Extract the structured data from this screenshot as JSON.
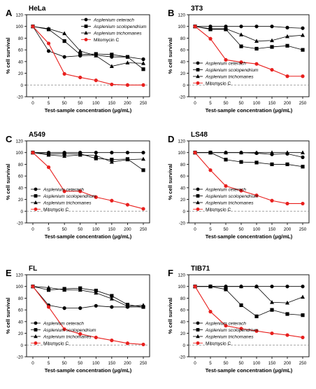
{
  "x_categories": [
    "0",
    "5",
    "50",
    "50",
    "100",
    "150",
    "200",
    "250"
  ],
  "y_ticks": [
    -20,
    0,
    20,
    40,
    60,
    80,
    100,
    120
  ],
  "xlabel": "Test-sample concentration (μg/mL)",
  "ylabel": "% cell survival",
  "colors": {
    "fern": "#000000",
    "mitomycin": "#e8201e",
    "refline": "#888888"
  },
  "chart_data": [
    {
      "type": "line",
      "letter": "A",
      "panel_title": "HeLa",
      "ylim": [
        -20,
        120
      ],
      "reference_line": 0,
      "legend_placement": "top-right",
      "categories": [
        "0",
        "5",
        "50",
        "50",
        "100",
        "150",
        "200",
        "250"
      ],
      "series": [
        {
          "name": "Asplenium ceterach",
          "marker": "circle",
          "values": [
            100,
            58,
            48,
            50,
            51,
            48,
            48,
            44
          ]
        },
        {
          "name": "Asplenium scolopendrium",
          "marker": "square",
          "values": [
            100,
            95,
            75,
            52,
            53,
            52,
            48,
            27
          ]
        },
        {
          "name": "Asplenium trichomanes",
          "marker": "triangle",
          "values": [
            100,
            96,
            88,
            58,
            50,
            32,
            38,
            37
          ]
        },
        {
          "name": "Mitomycin C",
          "marker": "circle",
          "values": [
            100,
            71,
            19,
            13,
            8,
            1,
            0,
            0
          ]
        }
      ]
    },
    {
      "type": "line",
      "letter": "B",
      "panel_title": "3T3",
      "ylim": [
        -20,
        120
      ],
      "reference_line": 0,
      "legend_placement": "bottom-left",
      "categories": [
        "0",
        "5",
        "50",
        "50",
        "100",
        "150",
        "200",
        "250"
      ],
      "series": [
        {
          "name": "Asplenium ceterach",
          "marker": "circle",
          "values": [
            100,
            100,
            100,
            100,
            100,
            100,
            98,
            97
          ]
        },
        {
          "name": "Asplenium scolopendrium",
          "marker": "square",
          "values": [
            100,
            95,
            95,
            66,
            62,
            65,
            67,
            60
          ]
        },
        {
          "name": "Asplenium trichomanes",
          "marker": "triangle",
          "values": [
            100,
            96,
            96,
            86,
            75,
            76,
            83,
            85
          ]
        },
        {
          "name": "Mitomycin C",
          "marker": "circle",
          "values": [
            100,
            79,
            43,
            39,
            36,
            26,
            15,
            15
          ]
        }
      ]
    },
    {
      "type": "line",
      "letter": "C",
      "panel_title": "A549",
      "ylim": [
        -20,
        120
      ],
      "reference_line": 0,
      "legend_placement": "bottom-left",
      "categories": [
        "0",
        "5",
        "50",
        "50",
        "100",
        "150",
        "200",
        "250"
      ],
      "series": [
        {
          "name": "Asplenium ceterach",
          "marker": "circle",
          "values": [
            100,
            100,
            100,
            100,
            100,
            100,
            100,
            100
          ]
        },
        {
          "name": "Asplenium scolopendrium",
          "marker": "square",
          "values": [
            100,
            98,
            98,
            98,
            90,
            88,
            89,
            70
          ]
        },
        {
          "name": "Asplenium trichomanes",
          "marker": "triangle",
          "values": [
            100,
            96,
            94,
            96,
            95,
            84,
            88,
            89
          ]
        },
        {
          "name": "Mitomycin C",
          "marker": "circle",
          "values": [
            100,
            75,
            34,
            34,
            24,
            18,
            11,
            4
          ]
        }
      ]
    },
    {
      "type": "line",
      "letter": "D",
      "panel_title": "LS48",
      "ylim": [
        -20,
        120
      ],
      "reference_line": 0,
      "legend_placement": "bottom-left",
      "categories": [
        "0",
        "5",
        "50",
        "50",
        "100",
        "150",
        "200",
        "250"
      ],
      "series": [
        {
          "name": "Asplenium ceterach",
          "marker": "circle",
          "values": [
            100,
            100,
            100,
            100,
            99,
            97,
            98,
            92
          ]
        },
        {
          "name": "Asplenium scolopendrium",
          "marker": "square",
          "values": [
            100,
            100,
            88,
            84,
            83,
            80,
            80,
            76
          ]
        },
        {
          "name": "Asplenium trichomanes",
          "marker": "triangle",
          "values": [
            100,
            100,
            100,
            100,
            100,
            100,
            100,
            100
          ]
        },
        {
          "name": "Mitomycin C",
          "marker": "circle",
          "values": [
            100,
            70,
            43,
            35,
            27,
            18,
            13,
            13
          ]
        }
      ]
    },
    {
      "type": "line",
      "letter": "E",
      "panel_title": "FL",
      "ylim": [
        -20,
        120
      ],
      "reference_line": 0,
      "legend_placement": "bottom-left",
      "categories": [
        "0",
        "5",
        "50",
        "50",
        "100",
        "150",
        "200",
        "250"
      ],
      "series": [
        {
          "name": "Asplenium ceterach",
          "marker": "circle",
          "values": [
            100,
            68,
            63,
            63,
            67,
            65,
            65,
            65
          ]
        },
        {
          "name": "Asplenium scolopendrium",
          "marker": "square",
          "values": [
            100,
            94,
            96,
            97,
            93,
            84,
            69,
            65
          ]
        },
        {
          "name": "Asplenium trichomanes",
          "marker": "triangle",
          "values": [
            100,
            98,
            94,
            94,
            89,
            79,
            66,
            68
          ]
        },
        {
          "name": "Mitomycin C",
          "marker": "circle",
          "values": [
            100,
            65,
            27,
            19,
            13,
            8,
            3,
            1
          ]
        }
      ]
    },
    {
      "type": "line",
      "letter": "F",
      "panel_title": "TIB71",
      "ylim": [
        -20,
        120
      ],
      "reference_line": 0,
      "legend_placement": "bottom-left",
      "categories": [
        "0",
        "5",
        "50",
        "50",
        "100",
        "150",
        "200",
        "250"
      ],
      "series": [
        {
          "name": "Asplenium ceterach",
          "marker": "circle",
          "values": [
            100,
            100,
            100,
            100,
            100,
            100,
            100,
            100
          ]
        },
        {
          "name": "Asplenium scolopendrium",
          "marker": "square",
          "values": [
            100,
            100,
            95,
            68,
            49,
            60,
            53,
            51
          ]
        },
        {
          "name": "Asplenium trichomanes",
          "marker": "triangle",
          "values": [
            100,
            100,
            100,
            100,
            100,
            73,
            72,
            82
          ]
        },
        {
          "name": "Mitomycin C",
          "marker": "circle",
          "values": [
            100,
            57,
            33,
            28,
            24,
            20,
            17,
            13
          ]
        }
      ]
    }
  ]
}
